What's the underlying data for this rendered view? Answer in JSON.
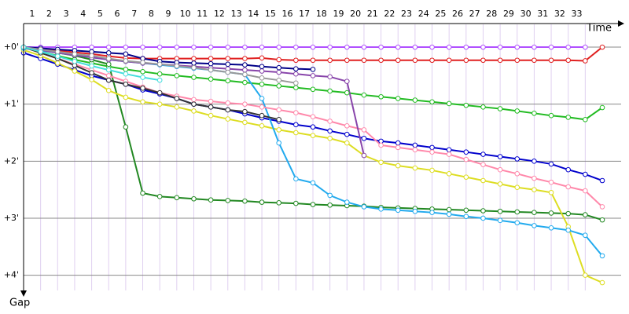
{
  "chart_data": {
    "type": "line",
    "x_label": "Time",
    "y_label": "Gap",
    "x": [
      0,
      1,
      2,
      3,
      4,
      5,
      6,
      7,
      8,
      9,
      10,
      11,
      12,
      13,
      14,
      15,
      16,
      17,
      18,
      19,
      20,
      21,
      22,
      23,
      24,
      25,
      26,
      27,
      28,
      29,
      30,
      31,
      32,
      33,
      34
    ],
    "xlim": [
      0,
      34
    ],
    "xticks": [
      1,
      2,
      3,
      4,
      5,
      6,
      7,
      8,
      9,
      10,
      11,
      12,
      13,
      14,
      15,
      16,
      17,
      18,
      19,
      20,
      21,
      22,
      23,
      24,
      25,
      26,
      27,
      28,
      29,
      30,
      31,
      32,
      33
    ],
    "ylim": [
      -0.4,
      4.35
    ],
    "yticks": [
      {
        "value": 0,
        "label": "+0'"
      },
      {
        "value": 1,
        "label": "+1'"
      },
      {
        "value": 2,
        "label": "+2'"
      },
      {
        "value": 3,
        "label": "+3'"
      },
      {
        "value": 4,
        "label": "+4'"
      }
    ],
    "y_inverted": true,
    "grid": true,
    "series": [
      {
        "color": "#b050ff",
        "values": [
          0,
          0,
          0,
          0,
          0,
          0,
          0,
          0,
          0,
          0,
          0,
          0,
          0,
          0,
          0,
          0,
          0,
          0,
          0,
          0,
          0,
          0,
          0,
          0,
          0,
          0,
          0,
          0,
          0,
          0,
          0,
          0,
          0,
          0,
          null
        ]
      },
      {
        "color": "#e02020",
        "values": [
          0,
          0.03,
          0.06,
          0.09,
          0.12,
          0.16,
          0.19,
          0.2,
          0.2,
          0.2,
          0.2,
          0.2,
          0.2,
          0.2,
          0.19,
          0.22,
          0.23,
          0.23,
          0.23,
          0.23,
          0.23,
          0.23,
          0.23,
          0.23,
          0.23,
          0.23,
          0.23,
          0.23,
          0.23,
          0.23,
          0.23,
          0.23,
          0.23,
          0.24,
          0
        ]
      },
      {
        "color": "#22bb22",
        "values": [
          0,
          0.08,
          0.15,
          0.22,
          0.28,
          0.34,
          0.39,
          0.43,
          0.47,
          0.5,
          0.53,
          0.56,
          0.59,
          0.62,
          0.65,
          0.68,
          0.71,
          0.74,
          0.77,
          0.8,
          0.84,
          0.87,
          0.9,
          0.93,
          0.96,
          0.99,
          1.02,
          1.05,
          1.08,
          1.12,
          1.16,
          1.2,
          1.23,
          1.27,
          1.06
        ]
      },
      {
        "color": "#0000cc",
        "values": [
          0.1,
          0.2,
          0.3,
          0.4,
          0.5,
          0.58,
          0.65,
          0.75,
          0.82,
          0.9,
          1.0,
          1.05,
          1.1,
          1.17,
          1.24,
          1.3,
          1.36,
          1.4,
          1.47,
          1.53,
          1.6,
          1.65,
          1.68,
          1.72,
          1.76,
          1.8,
          1.84,
          1.88,
          1.92,
          1.96,
          2.0,
          2.05,
          2.15,
          2.23,
          2.34
        ]
      },
      {
        "color": "#228822",
        "values": [
          0,
          0.05,
          0.1,
          0.15,
          0.22,
          0.3,
          1.4,
          2.56,
          2.62,
          2.64,
          2.66,
          2.68,
          2.69,
          2.7,
          2.72,
          2.73,
          2.74,
          2.76,
          2.77,
          2.78,
          2.79,
          2.81,
          2.82,
          2.83,
          2.84,
          2.85,
          2.86,
          2.87,
          2.88,
          2.89,
          2.9,
          2.91,
          2.92,
          2.94,
          3.03
        ]
      },
      {
        "color": "#dddd22",
        "values": [
          0.05,
          0.15,
          0.28,
          0.42,
          0.57,
          0.76,
          0.88,
          0.96,
          1.0,
          1.05,
          1.12,
          1.2,
          1.26,
          1.32,
          1.38,
          1.45,
          1.5,
          1.55,
          1.6,
          1.68,
          1.9,
          2.02,
          2.08,
          2.12,
          2.16,
          2.22,
          2.28,
          2.34,
          2.4,
          2.46,
          2.5,
          2.55,
          3.15,
          4.0,
          4.13
        ]
      },
      {
        "color": "#22aaee",
        "values": [
          0.02,
          0.06,
          0.1,
          0.14,
          0.18,
          0.22,
          0.25,
          0.28,
          0.31,
          0.34,
          0.37,
          0.4,
          0.44,
          0.48,
          0.9,
          1.68,
          2.31,
          2.38,
          2.6,
          2.72,
          2.8,
          2.84,
          2.86,
          2.88,
          2.9,
          2.93,
          2.97,
          3.0,
          3.04,
          3.08,
          3.13,
          3.17,
          3.21,
          3.3,
          3.66
        ]
      },
      {
        "color": "#ff88aa",
        "values": [
          0,
          0.1,
          0.2,
          0.3,
          0.4,
          0.5,
          0.6,
          0.7,
          0.8,
          0.86,
          0.92,
          0.95,
          0.98,
          1.0,
          1.05,
          1.1,
          1.15,
          1.22,
          1.3,
          1.38,
          1.45,
          1.72,
          1.76,
          1.8,
          1.84,
          1.88,
          1.97,
          2.06,
          2.15,
          2.22,
          2.3,
          2.37,
          2.45,
          2.52,
          2.8
        ]
      },
      {
        "color": "#8844aa",
        "values": [
          0,
          0.05,
          0.1,
          0.14,
          0.18,
          0.22,
          0.25,
          0.28,
          0.3,
          0.32,
          0.34,
          0.36,
          0.38,
          0.4,
          0.42,
          0.44,
          0.47,
          0.5,
          0.52,
          0.6,
          1.9,
          null,
          null,
          null,
          null,
          null,
          null,
          null,
          null,
          null,
          null,
          null,
          null,
          null,
          null
        ]
      },
      {
        "color": "#333333",
        "values": [
          0,
          0.1,
          0.2,
          0.32,
          0.45,
          0.58,
          0.65,
          0.72,
          0.8,
          0.9,
          1.0,
          1.05,
          1.1,
          1.13,
          1.2,
          1.27,
          null,
          null,
          null,
          null,
          null,
          null,
          null,
          null,
          null,
          null,
          null,
          null,
          null,
          null,
          null,
          null,
          null,
          null,
          null
        ]
      },
      {
        "color": "#000088",
        "values": [
          0,
          0.02,
          0.04,
          0.06,
          0.08,
          0.1,
          0.12,
          0.2,
          0.25,
          0.27,
          0.28,
          0.29,
          0.3,
          0.31,
          0.34,
          0.36,
          0.38,
          0.39,
          null,
          null,
          null,
          null,
          null,
          null,
          null,
          null,
          null,
          null,
          null,
          null,
          null,
          null,
          null,
          null,
          null
        ]
      },
      {
        "color": "#999999",
        "values": [
          0,
          0.04,
          0.08,
          0.12,
          0.15,
          0.2,
          0.24,
          0.27,
          0.3,
          0.33,
          0.36,
          0.4,
          0.44,
          0.48,
          0.54,
          0.58,
          0.63,
          null,
          null,
          null,
          null,
          null,
          null,
          null,
          null,
          null,
          null,
          null,
          null,
          null,
          null,
          null,
          null,
          null,
          null
        ]
      },
      {
        "color": "#44dddd",
        "values": [
          0,
          0.08,
          0.16,
          0.25,
          0.33,
          0.4,
          0.47,
          0.53,
          0.58,
          null,
          null,
          null,
          null,
          null,
          null,
          null,
          null,
          null,
          null,
          null,
          null,
          null,
          null,
          null,
          null,
          null,
          null,
          null,
          null,
          null,
          null,
          null,
          null,
          null,
          null
        ]
      }
    ]
  }
}
